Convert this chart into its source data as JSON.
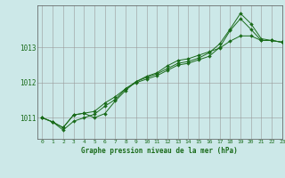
{
  "title": "Graphe pression niveau de la mer (hPa)",
  "background_color": "#cce8e8",
  "grid_color": "#999999",
  "line_color": "#1a6b1a",
  "xlim": [
    -0.5,
    23
  ],
  "ylim": [
    1010.4,
    1014.2
  ],
  "yticks": [
    1011,
    1012,
    1013
  ],
  "xticks": [
    0,
    1,
    2,
    3,
    4,
    5,
    6,
    7,
    8,
    9,
    10,
    11,
    12,
    13,
    14,
    15,
    16,
    17,
    18,
    19,
    20,
    21,
    22,
    23
  ],
  "series": [
    [
      1011.0,
      1010.88,
      1010.72,
      1011.08,
      1011.13,
      1011.18,
      1011.42,
      1011.6,
      1011.83,
      1012.0,
      1012.1,
      1012.2,
      1012.35,
      1012.5,
      1012.55,
      1012.65,
      1012.75,
      1013.0,
      1013.48,
      1013.82,
      1013.52,
      1013.2,
      1013.2,
      1013.15
    ],
    [
      1011.0,
      1010.88,
      1010.72,
      1011.08,
      1011.13,
      1011.0,
      1011.12,
      1011.48,
      1011.78,
      1012.03,
      1012.15,
      1012.25,
      1012.4,
      1012.55,
      1012.6,
      1012.7,
      1012.85,
      1013.1,
      1013.52,
      1013.97,
      1013.68,
      1013.25,
      1013.2,
      1013.15
    ],
    [
      1011.0,
      1010.88,
      1010.65,
      1010.9,
      1011.0,
      1011.1,
      1011.33,
      1011.52,
      1011.83,
      1012.03,
      1012.18,
      1012.28,
      1012.48,
      1012.63,
      1012.68,
      1012.78,
      1012.88,
      1012.98,
      1013.18,
      1013.33,
      1013.33,
      1013.2,
      1013.2,
      1013.15
    ]
  ]
}
